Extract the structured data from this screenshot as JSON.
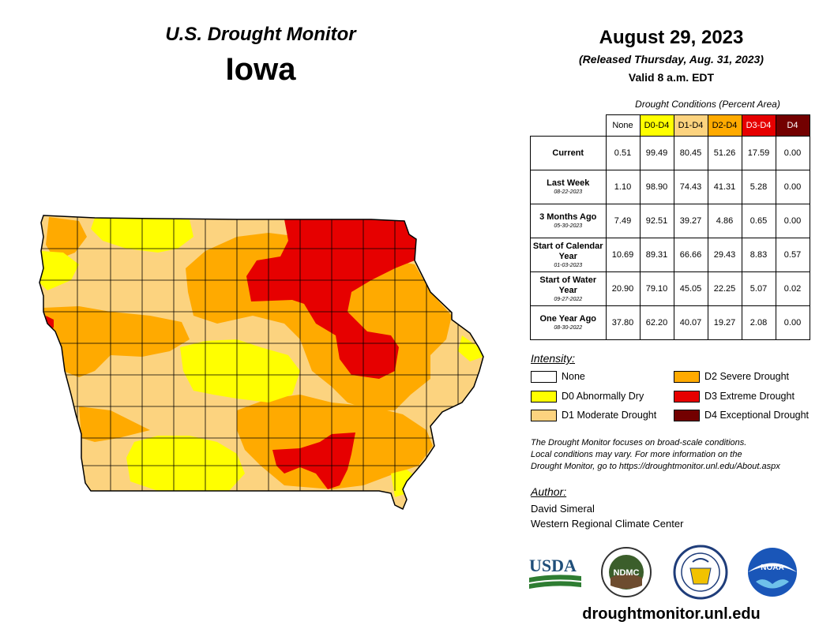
{
  "header": {
    "title": "U.S. Drought Monitor",
    "state": "Iowa",
    "date": "August 29, 2023",
    "released": "(Released Thursday, Aug. 31, 2023)",
    "valid": "Valid 8 a.m. EDT"
  },
  "conditions": {
    "caption": "Drought Conditions (Percent Area)",
    "columns": [
      {
        "label": "None",
        "color": "#ffffff",
        "text_color": "#000000"
      },
      {
        "label": "D0-D4",
        "color": "#ffff00",
        "text_color": "#000000"
      },
      {
        "label": "D1-D4",
        "color": "#fcd37f",
        "text_color": "#000000"
      },
      {
        "label": "D2-D4",
        "color": "#ffaa00",
        "text_color": "#000000"
      },
      {
        "label": "D3-D4",
        "color": "#e60000",
        "text_color": "#ffffff"
      },
      {
        "label": "D4",
        "color": "#730000",
        "text_color": "#ffffff"
      }
    ],
    "rows": [
      {
        "label": "Current",
        "date": "",
        "values": [
          "0.51",
          "99.49",
          "80.45",
          "51.26",
          "17.59",
          "0.00"
        ]
      },
      {
        "label": "Last Week",
        "date": "08-22-2023",
        "values": [
          "1.10",
          "98.90",
          "74.43",
          "41.31",
          "5.28",
          "0.00"
        ]
      },
      {
        "label": "3 Months Ago",
        "date": "05-30-2023",
        "values": [
          "7.49",
          "92.51",
          "39.27",
          "4.86",
          "0.65",
          "0.00"
        ]
      },
      {
        "label": "Start of Calendar Year",
        "date": "01-03-2023",
        "values": [
          "10.69",
          "89.31",
          "66.66",
          "29.43",
          "8.83",
          "0.57"
        ]
      },
      {
        "label": "Start of Water Year",
        "date": "09-27-2022",
        "values": [
          "20.90",
          "79.10",
          "45.05",
          "22.25",
          "5.07",
          "0.02"
        ]
      },
      {
        "label": "One Year Ago",
        "date": "08-30-2022",
        "values": [
          "37.80",
          "62.20",
          "40.07",
          "19.27",
          "2.08",
          "0.00"
        ]
      }
    ]
  },
  "legend": {
    "title": "Intensity:",
    "items": [
      {
        "label": "None",
        "color": "#ffffff"
      },
      {
        "label": "D0 Abnormally Dry",
        "color": "#ffff00"
      },
      {
        "label": "D1 Moderate Drought",
        "color": "#fcd37f"
      },
      {
        "label": "D2 Severe Drought",
        "color": "#ffaa00"
      },
      {
        "label": "D3 Extreme Drought",
        "color": "#e60000"
      },
      {
        "label": "D4 Exceptional Drought",
        "color": "#730000"
      }
    ]
  },
  "note": {
    "line1": "The Drought Monitor focuses on broad-scale conditions.",
    "line2": "Local conditions may vary. For more information on the",
    "line3": "Drought Monitor, go to https://droughtmonitor.unl.edu/About.aspx"
  },
  "author": {
    "title": "Author:",
    "name": "David Simeral",
    "org": "Western Regional Climate Center"
  },
  "logos": {
    "usda": "USDA",
    "ndmc": "NDMC",
    "noaa": "NOAA",
    "ndmc_ring": "NATIONAL DROUGHT MITIGATION CENTER · UNIVERSITY OF NEBRASKA"
  },
  "footer_url": "droughtmonitor.unl.edu"
}
